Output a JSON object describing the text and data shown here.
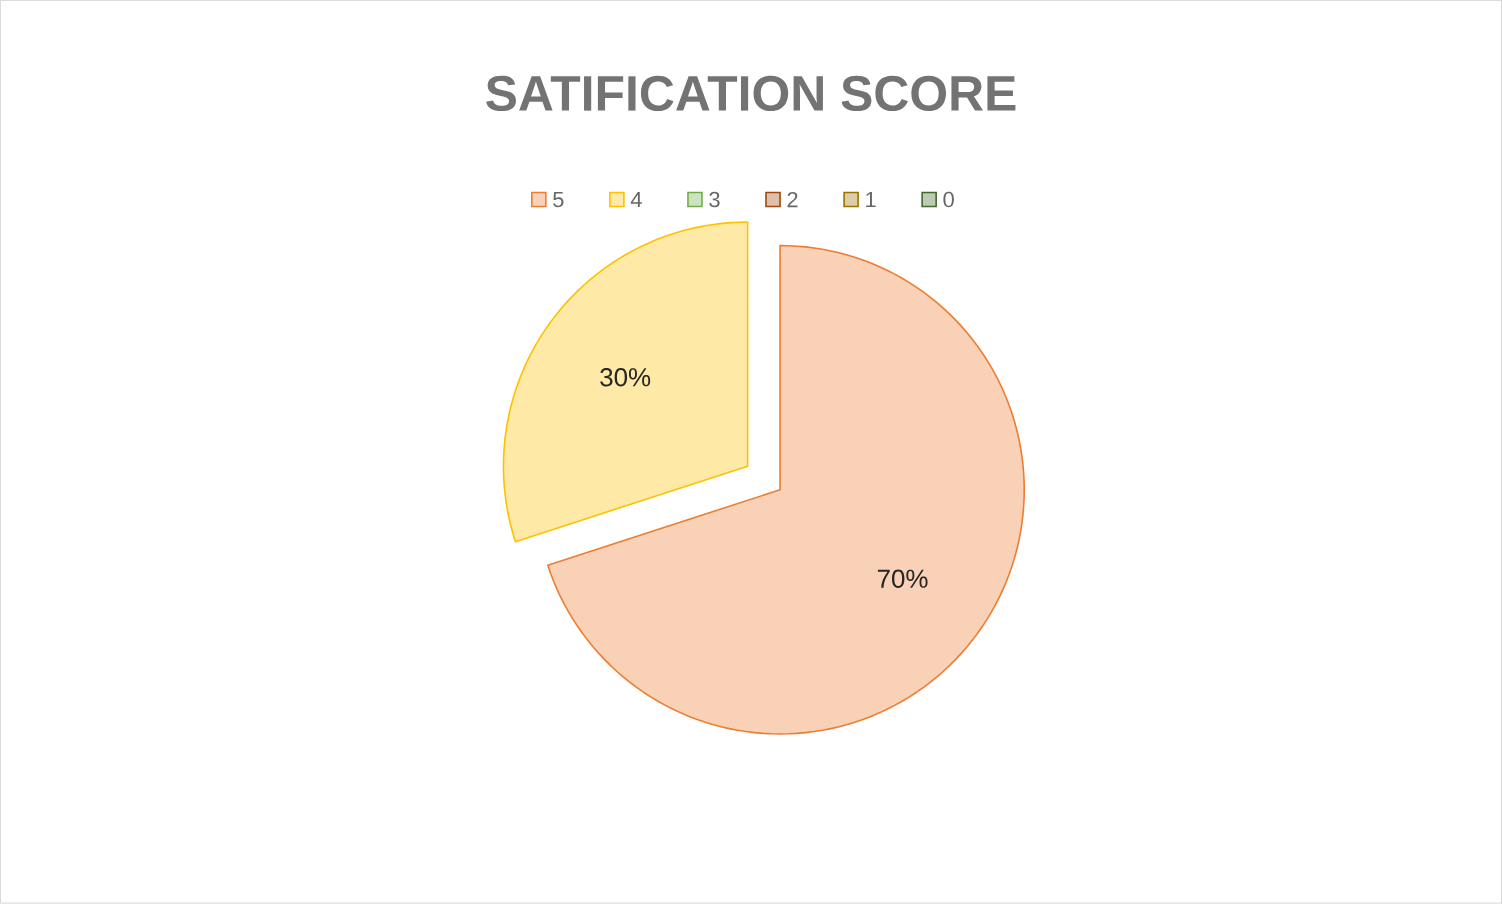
{
  "chart_data": {
    "type": "pie",
    "title": "SATIFICATION SCORE",
    "categories": [
      "5",
      "4",
      "3",
      "2",
      "1",
      "0"
    ],
    "values": [
      70,
      30,
      0,
      0,
      0,
      0
    ],
    "colors": [
      "#ed7d31",
      "#ffc000",
      "#70ad47",
      "#9e480e",
      "#997300",
      "#43682b"
    ],
    "value_labels": [
      "70%",
      "30%",
      null,
      null,
      null,
      null
    ],
    "legend": "top"
  }
}
